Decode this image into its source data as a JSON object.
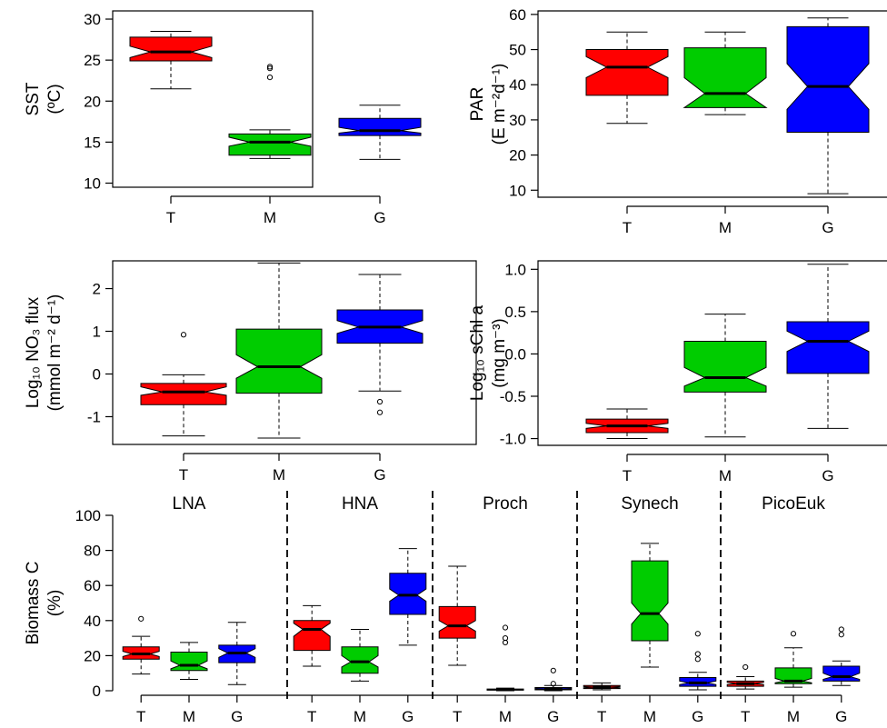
{
  "colors": {
    "T": "#ff0000",
    "M": "#00cc00",
    "G": "#0000ff"
  },
  "chart_data": [
    {
      "type": "box",
      "ylabel_line1": "SST",
      "ylabel_line2": "(ºC)",
      "ylim": [
        9.5,
        31
      ],
      "yticks": [
        10,
        15,
        20,
        25,
        30
      ],
      "categories": [
        "T",
        "M",
        "G"
      ],
      "boxes": [
        {
          "cat": "T",
          "min": 21.5,
          "q1": 24.9,
          "med": 26,
          "q3": 27.8,
          "max": 28.5,
          "nlo": 25.3,
          "nhi": 26.7,
          "outliers": []
        },
        {
          "cat": "M",
          "min": 13,
          "q1": 13.4,
          "med": 15,
          "q3": 16,
          "max": 16.5,
          "nlo": 14.5,
          "nhi": 15.6,
          "outliers": [
            22.9,
            24,
            24.2
          ]
        },
        {
          "cat": "G",
          "min": 12.9,
          "q1": 15.8,
          "med": 16.4,
          "q3": 17.9,
          "max": 19.5,
          "nlo": 16.1,
          "nhi": 16.8,
          "outliers": []
        }
      ]
    },
    {
      "type": "box",
      "ylabel_line1": "PAR",
      "ylabel_line2": "(E m⁻²d⁻¹)",
      "ylim": [
        8,
        61
      ],
      "yticks": [
        10,
        20,
        30,
        40,
        50,
        60
      ],
      "categories": [
        "T",
        "M",
        "G"
      ],
      "boxes": [
        {
          "cat": "T",
          "min": 29,
          "q1": 37,
          "med": 45,
          "q3": 50,
          "max": 55,
          "nlo": 42,
          "nhi": 48,
          "outliers": []
        },
        {
          "cat": "M",
          "min": 31.5,
          "q1": 33.5,
          "med": 37.5,
          "q3": 50.5,
          "max": 55,
          "nlo": 33.5,
          "nhi": 42,
          "outliers": []
        },
        {
          "cat": "G",
          "min": 9,
          "q1": 26.5,
          "med": 39.5,
          "q3": 56.5,
          "max": 59,
          "nlo": 33,
          "nhi": 46,
          "outliers": []
        }
      ]
    },
    {
      "type": "box",
      "ylabel_line1": "Log₁₀ NO₃ flux",
      "ylabel_line2": "(mmol m⁻² d⁻¹)",
      "ylim": [
        -1.65,
        2.65
      ],
      "yticks": [
        -1,
        0,
        1,
        2
      ],
      "categories": [
        "T",
        "M",
        "G"
      ],
      "boxes": [
        {
          "cat": "T",
          "min": -1.45,
          "q1": -0.72,
          "med": -0.42,
          "q3": -0.22,
          "max": -0.02,
          "nlo": -0.5,
          "nhi": -0.3,
          "outliers": [
            0.92
          ]
        },
        {
          "cat": "M",
          "min": -1.5,
          "q1": -0.45,
          "med": 0.17,
          "q3": 1.05,
          "max": 2.6,
          "nlo": -0.1,
          "nhi": 0.45,
          "outliers": []
        },
        {
          "cat": "G",
          "min": -0.4,
          "q1": 0.72,
          "med": 1.1,
          "q3": 1.5,
          "max": 2.33,
          "nlo": 0.95,
          "nhi": 1.25,
          "outliers": [
            -0.65,
            -0.9
          ]
        }
      ]
    },
    {
      "type": "box",
      "ylabel_line1": "Log₁₀ sChl a",
      "ylabel_line2": "(mg m⁻³)",
      "ylim": [
        -1.08,
        1.1
      ],
      "yticks": [
        -1.0,
        -0.5,
        0.0,
        0.5,
        1.0
      ],
      "ytick_labels": [
        "-1.0",
        "-0.5",
        "0.0",
        "0.5",
        "1.0"
      ],
      "categories": [
        "T",
        "M",
        "G"
      ],
      "boxes": [
        {
          "cat": "T",
          "min": -1.0,
          "q1": -0.93,
          "med": -0.85,
          "q3": -0.77,
          "max": -0.65,
          "nlo": -0.88,
          "nhi": -0.82,
          "outliers": []
        },
        {
          "cat": "M",
          "min": -0.98,
          "q1": -0.45,
          "med": -0.28,
          "q3": 0.15,
          "max": 0.47,
          "nlo": -0.38,
          "nhi": -0.16,
          "outliers": []
        },
        {
          "cat": "G",
          "min": -0.88,
          "q1": -0.23,
          "med": 0.15,
          "q3": 0.38,
          "max": 1.06,
          "nlo": 0.03,
          "nhi": 0.27,
          "outliers": []
        }
      ]
    },
    {
      "type": "box",
      "ylabel_line1": "Biomass C",
      "ylabel_line2": "(%)",
      "ylim": [
        0,
        100
      ],
      "yticks": [
        0,
        20,
        40,
        60,
        80,
        100
      ],
      "groups": [
        "LNA",
        "HNA",
        "Proch",
        "Synech",
        "PicoEuk"
      ],
      "categories": [
        "T",
        "M",
        "G"
      ],
      "boxes": [
        {
          "group": "LNA",
          "cat": "T",
          "min": 9.5,
          "q1": 18,
          "med": 21,
          "q3": 25,
          "max": 31,
          "nlo": 19.5,
          "nhi": 22.5,
          "outliers": [
            41
          ]
        },
        {
          "group": "LNA",
          "cat": "M",
          "min": 6.5,
          "q1": 11.5,
          "med": 14.5,
          "q3": 22,
          "max": 27.5,
          "nlo": 12.5,
          "nhi": 17,
          "outliers": []
        },
        {
          "group": "LNA",
          "cat": "G",
          "min": 3.5,
          "q1": 16,
          "med": 21.5,
          "q3": 26,
          "max": 39,
          "nlo": 19,
          "nhi": 24,
          "outliers": []
        },
        {
          "group": "HNA",
          "cat": "T",
          "min": 14,
          "q1": 23,
          "med": 35,
          "q3": 40,
          "max": 48.5,
          "nlo": 31,
          "nhi": 38.5,
          "outliers": []
        },
        {
          "group": "HNA",
          "cat": "M",
          "min": 5.5,
          "q1": 10,
          "med": 16.5,
          "q3": 25,
          "max": 35,
          "nlo": 13.5,
          "nhi": 20,
          "outliers": []
        },
        {
          "group": "HNA",
          "cat": "G",
          "min": 26,
          "q1": 43.5,
          "med": 54.5,
          "q3": 67,
          "max": 81,
          "nlo": 51,
          "nhi": 58,
          "outliers": []
        },
        {
          "group": "Proch",
          "cat": "T",
          "min": 14.5,
          "q1": 30,
          "med": 37,
          "q3": 48,
          "max": 71,
          "nlo": 34,
          "nhi": 40,
          "outliers": []
        },
        {
          "group": "Proch",
          "cat": "M",
          "min": 0,
          "q1": 0.3,
          "med": 0.6,
          "q3": 1,
          "max": 1.5,
          "nlo": 0.5,
          "nhi": 0.8,
          "outliers": [
            27.5,
            30,
            36
          ]
        },
        {
          "group": "Proch",
          "cat": "G",
          "min": 0,
          "q1": 0.5,
          "med": 1,
          "q3": 1.8,
          "max": 3,
          "nlo": 0.8,
          "nhi": 1.3,
          "outliers": [
            4,
            11.5
          ]
        },
        {
          "group": "Synech",
          "cat": "T",
          "min": 0.5,
          "q1": 1.2,
          "med": 2,
          "q3": 3,
          "max": 4.5,
          "nlo": 1.7,
          "nhi": 2.4,
          "outliers": []
        },
        {
          "group": "Synech",
          "cat": "M",
          "min": 13.5,
          "q1": 28.5,
          "med": 44,
          "q3": 74,
          "max": 84,
          "nlo": 38,
          "nhi": 50,
          "outliers": []
        },
        {
          "group": "Synech",
          "cat": "G",
          "min": 0.5,
          "q1": 2.5,
          "med": 4.5,
          "q3": 7.5,
          "max": 10.5,
          "nlo": 3.5,
          "nhi": 5.5,
          "outliers": [
            18,
            21,
            32.5
          ]
        },
        {
          "group": "PicoEuk",
          "cat": "T",
          "min": 1,
          "q1": 2.5,
          "med": 4,
          "q3": 5.5,
          "max": 8,
          "nlo": 3.5,
          "nhi": 4.8,
          "outliers": [
            13.5
          ]
        },
        {
          "group": "PicoEuk",
          "cat": "M",
          "min": 2,
          "q1": 4,
          "med": 5.5,
          "q3": 13,
          "max": 24.5,
          "nlo": 4.5,
          "nhi": 7,
          "outliers": [
            32.5
          ]
        },
        {
          "group": "PicoEuk",
          "cat": "G",
          "min": 3,
          "q1": 5.5,
          "med": 8,
          "q3": 14,
          "max": 17,
          "nlo": 6.5,
          "nhi": 10,
          "outliers": [
            32,
            35
          ]
        }
      ]
    }
  ]
}
